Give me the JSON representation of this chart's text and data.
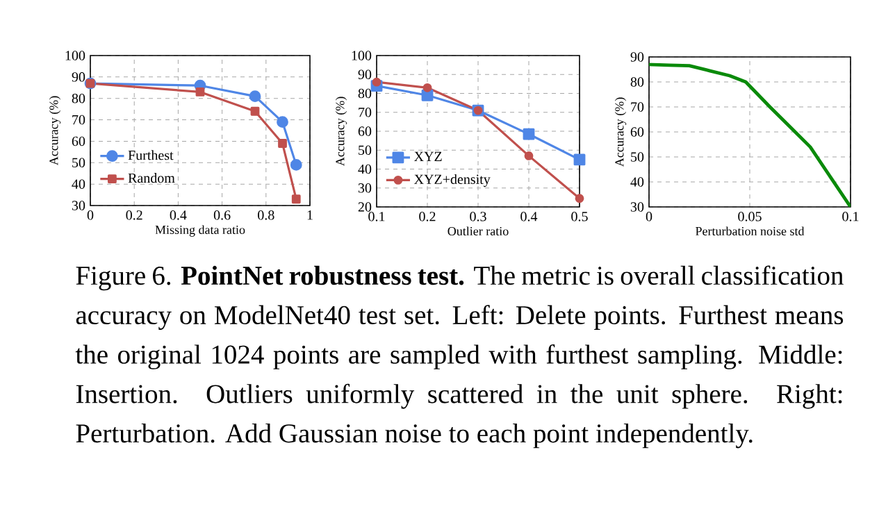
{
  "chart_data": [
    {
      "type": "line",
      "xlabel": "Missing data ratio",
      "ylabel": "Accuracy (%)",
      "x": [
        0,
        0.5,
        0.75,
        0.875,
        0.9375
      ],
      "xlim": [
        0,
        1
      ],
      "xticks": [
        0,
        0.2,
        0.4,
        0.6,
        0.8,
        1
      ],
      "ylim": [
        30,
        100
      ],
      "yticks": [
        30,
        40,
        50,
        60,
        70,
        80,
        90,
        100
      ],
      "grid": true,
      "legend": "bottom left",
      "line_style": "solid",
      "series": [
        {
          "name": "Furthest",
          "color": "#4f86e6",
          "marker": "circle",
          "values": [
            87,
            86,
            81,
            69,
            49
          ]
        },
        {
          "name": "Random",
          "color": "#c0504d",
          "marker": "square",
          "values": [
            87,
            83,
            74,
            59,
            33
          ]
        }
      ]
    },
    {
      "type": "line",
      "xlabel": "Outlier ratio",
      "ylabel": "Accuracy (%)",
      "x": [
        0.1,
        0.2,
        0.3,
        0.4,
        0.5
      ],
      "xlim": [
        0.1,
        0.5
      ],
      "xticks": [
        0.1,
        0.2,
        0.3,
        0.4,
        0.5
      ],
      "ylim": [
        20,
        100
      ],
      "yticks": [
        20,
        30,
        40,
        50,
        60,
        70,
        80,
        90,
        100
      ],
      "grid": true,
      "legend": "bottom left",
      "line_style": "solid",
      "series": [
        {
          "name": "XYZ",
          "color": "#4f86e6",
          "marker": "square",
          "values": [
            84,
            79,
            71,
            58.5,
            45
          ]
        },
        {
          "name": "XYZ+density",
          "color": "#c0504d",
          "marker": "circle",
          "values": [
            86,
            83,
            71,
            47,
            24.5
          ]
        }
      ]
    },
    {
      "type": "line",
      "xlabel": "Perturbation noise std",
      "ylabel": "Accuracy (%)",
      "xlim": [
        0,
        0.1
      ],
      "xticks": [
        0,
        0.05,
        0.1
      ],
      "ylim": [
        30,
        90
      ],
      "yticks": [
        30,
        40,
        50,
        60,
        70,
        80,
        90
      ],
      "grid": true,
      "line_style": "solid",
      "marker": "none",
      "series": [
        {
          "color": "#0a8a0a",
          "x": [
            0,
            0.01,
            0.02,
            0.03,
            0.04,
            0.048,
            0.06,
            0.07,
            0.08,
            0.09,
            0.1
          ],
          "values": [
            87,
            86.7,
            86.5,
            84.5,
            82.5,
            80,
            70,
            62,
            54,
            42,
            30
          ]
        }
      ]
    },
    {
      "type": "other",
      "annotations": [
        "Figure 6. **PointNet robustness test.** The metric is overall classification accuracy on ModelNet40 test set. Left: Delete points. Furthest means the original 1024 points are sampled with furthest sampling. Middle: Insertion. Outliers uniformly scattered in the unit sphere. Right: Perturbation. Add Gaussian noise to each point independently."
      ]
    }
  ]
}
